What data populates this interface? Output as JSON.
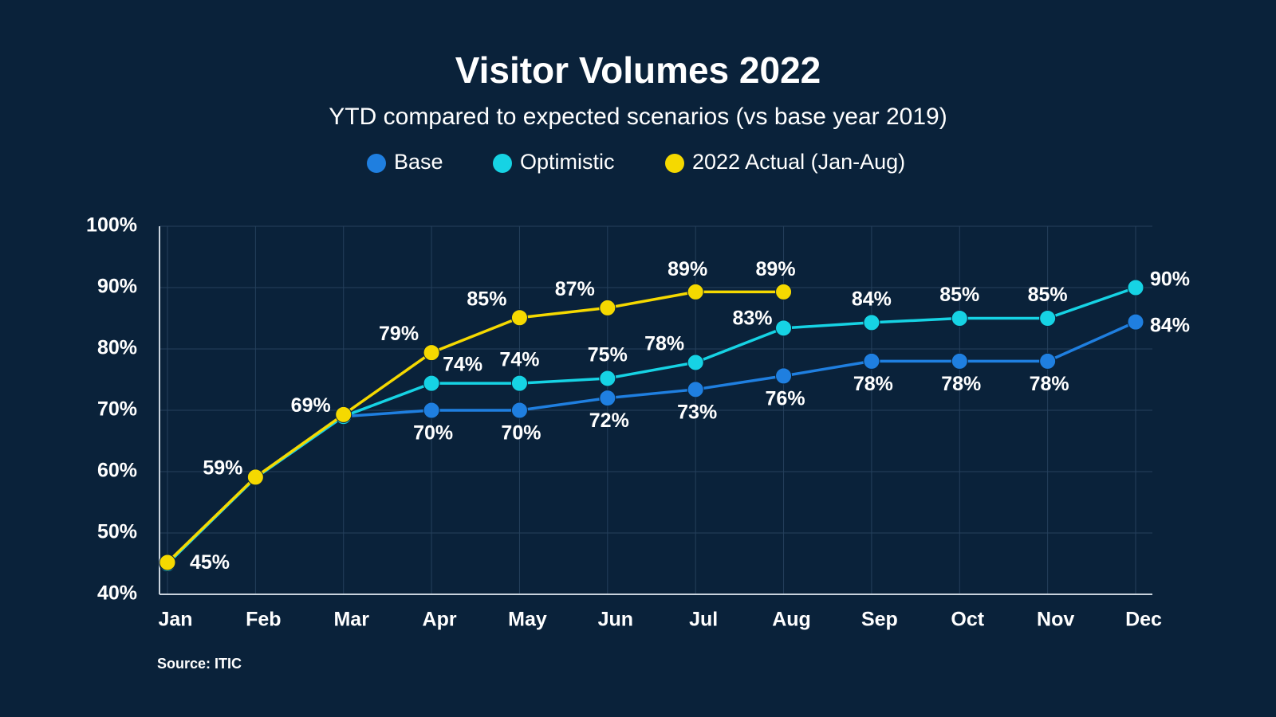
{
  "chart_data": {
    "type": "line",
    "title": "Visitor Volumes 2022",
    "subtitle": "YTD compared to expected scenarios (vs base year 2019)",
    "source": "Source: ITIC",
    "categories": [
      "Jan",
      "Feb",
      "Mar",
      "Apr",
      "May",
      "Jun",
      "Jul",
      "Aug",
      "Sep",
      "Oct",
      "Nov",
      "Dec"
    ],
    "series": [
      {
        "name": "Base",
        "color": "#1f7fe0",
        "values": [
          45,
          59,
          69,
          70,
          70,
          72,
          73.4,
          75.6,
          78,
          78,
          78,
          84.4
        ],
        "value_labels": [
          "45%",
          null,
          null,
          "70%",
          "70%",
          "72%",
          "73%",
          "76%",
          "78%",
          "78%",
          "78%",
          "84%"
        ]
      },
      {
        "name": "Optimistic",
        "color": "#16d3e4",
        "values": [
          45,
          59,
          69,
          74.4,
          74.4,
          75.2,
          77.8,
          83.4,
          84.3,
          85,
          85,
          90
        ],
        "value_labels": [
          null,
          null,
          null,
          "74%",
          "74%",
          "75%",
          "78%",
          "83%",
          "84%",
          "85%",
          "85%",
          "90%"
        ]
      },
      {
        "name": "2022 Actual (Jan-Aug)",
        "color": "#f5d900",
        "values": [
          45.2,
          59.1,
          69.3,
          79.4,
          85.1,
          86.7,
          89.3,
          89.3,
          null,
          null,
          null,
          null
        ],
        "value_labels": [
          null,
          "59%",
          "69%",
          "79%",
          "85%",
          "87%",
          "89%",
          "89%",
          null,
          null,
          null,
          null
        ]
      }
    ],
    "ylim": [
      40,
      100
    ],
    "yticks": [
      {
        "value": 40,
        "label": "40%"
      },
      {
        "value": 50,
        "label": "50%"
      },
      {
        "value": 60,
        "label": "60%"
      },
      {
        "value": 70,
        "label": "70%"
      },
      {
        "value": 80,
        "label": "80%"
      },
      {
        "value": 90,
        "label": "90%"
      },
      {
        "value": 100,
        "label": "100%"
      }
    ],
    "grid": true
  }
}
